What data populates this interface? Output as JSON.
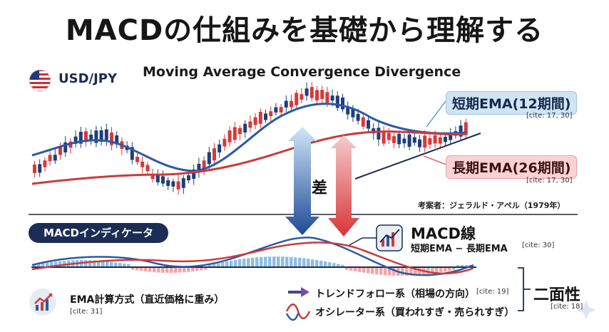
{
  "title": "MACDの仕組みを基礎から理解する",
  "subtitle": "Moving Average Convergence Divergence",
  "pair": "USD/JPY",
  "short_ema": {
    "label": "短期EMA(12期間)",
    "cite": "[cite: 17, 30]",
    "color": "#2b5aa6"
  },
  "long_ema": {
    "label": "長期EMA(26期間)",
    "cite": "[cite: 17, 30]",
    "color": "#cc3a3a"
  },
  "author": "考案者：ジェラルド・アペル（1979年）",
  "difference_label": "差",
  "macd_indicator": "MACDインディケータ",
  "macd_line": {
    "title": "MACD線",
    "formula": "短期EMA − 長期EMA",
    "cite": "[cite: 30]"
  },
  "ema_calc": {
    "label": "EMA計算方式（直近価格に重み）",
    "cite": "[cite: 31]"
  },
  "trend_follow": {
    "label": "トレンドフォロー系（相場の方向）",
    "cite": "[cite: 19]"
  },
  "oscillator": {
    "label": "オシレーター系（買われすぎ・売られすぎ）"
  },
  "duality": {
    "label": "二面性",
    "cite": "[cite: 18]"
  },
  "colors": {
    "up": "#d9383a",
    "down": "#1f3e7a",
    "navy": "#1c2d55",
    "hist_pos": "#8fbfe0",
    "hist_neg": "#f0a6a6"
  },
  "icons": [
    "us-flag-icon",
    "chart-up-icon",
    "arrow-right-icon",
    "wave-icon"
  ]
}
